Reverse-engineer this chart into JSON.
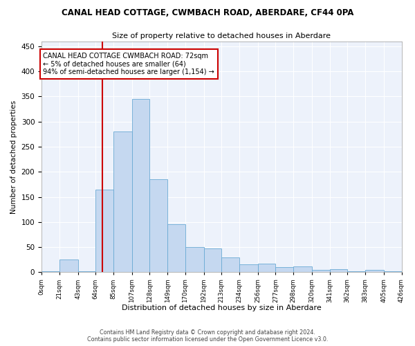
{
  "title": "CANAL HEAD COTTAGE, CWMBACH ROAD, ABERDARE, CF44 0PA",
  "subtitle": "Size of property relative to detached houses in Aberdare",
  "xlabel": "Distribution of detached houses by size in Aberdare",
  "ylabel": "Number of detached properties",
  "footer_line1": "Contains HM Land Registry data © Crown copyright and database right 2024.",
  "footer_line2": "Contains public sector information licensed under the Open Government Licence v3.0.",
  "annotation_line1": "CANAL HEAD COTTAGE CWMBACH ROAD: 72sqm",
  "annotation_line2": "← 5% of detached houses are smaller (64)",
  "annotation_line3": "94% of semi-detached houses are larger (1,154) →",
  "property_size": 72,
  "bar_color": "#c5d8f0",
  "bar_edge_color": "#6aaad4",
  "vline_color": "#cc0000",
  "annotation_box_color": "#ffffff",
  "annotation_box_edge": "#cc0000",
  "background_color": "#edf2fb",
  "bin_edges": [
    0,
    21,
    43,
    64,
    85,
    107,
    128,
    149,
    170,
    192,
    213,
    234,
    256,
    277,
    298,
    320,
    341,
    362,
    383,
    405,
    426
  ],
  "bin_heights": [
    2,
    25,
    2,
    165,
    280,
    345,
    185,
    95,
    50,
    48,
    30,
    15,
    17,
    10,
    12,
    4,
    6,
    2,
    5,
    2
  ],
  "ylim": [
    0,
    460
  ],
  "yticks": [
    0,
    50,
    100,
    150,
    200,
    250,
    300,
    350,
    400,
    450
  ]
}
